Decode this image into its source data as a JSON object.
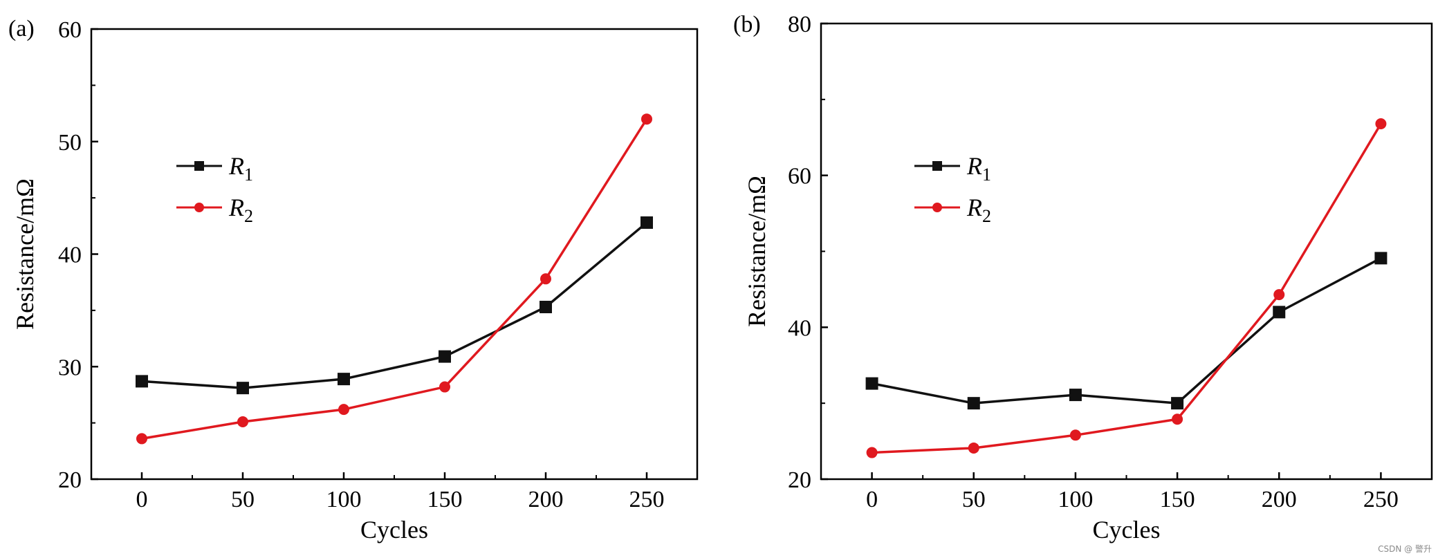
{
  "chart_data": [
    {
      "type": "line",
      "panel_label": "(a)",
      "xlabel": "Cycles",
      "ylabel": "Resistance/mΩ",
      "xlim": [
        -25,
        275
      ],
      "ylim": [
        20,
        60
      ],
      "x_ticks": [
        "0",
        "50",
        "100",
        "150",
        "200",
        "250"
      ],
      "y_ticks": [
        "20",
        "30",
        "40",
        "50",
        "60"
      ],
      "x": [
        0,
        50,
        100,
        150,
        200,
        250
      ],
      "legend_position": "upper-left",
      "series": [
        {
          "name": "R",
          "subscript": "1",
          "color": "#111111",
          "marker": "square",
          "values": [
            28.7,
            28.1,
            28.9,
            30.9,
            35.3,
            42.8
          ]
        },
        {
          "name": "R",
          "subscript": "2",
          "color": "#e0191f",
          "marker": "circle",
          "values": [
            23.6,
            25.1,
            26.2,
            28.2,
            37.8,
            52.0
          ]
        }
      ]
    },
    {
      "type": "line",
      "panel_label": "(b)",
      "xlabel": "Cycles",
      "ylabel": "Resistance/mΩ",
      "xlim": [
        -25,
        275
      ],
      "ylim": [
        20,
        80
      ],
      "x_ticks": [
        "0",
        "50",
        "100",
        "150",
        "200",
        "250"
      ],
      "y_ticks": [
        "20",
        "40",
        "60",
        "80"
      ],
      "x": [
        0,
        50,
        100,
        150,
        200,
        250
      ],
      "legend_position": "upper-left",
      "series": [
        {
          "name": "R",
          "subscript": "1",
          "color": "#111111",
          "marker": "square",
          "values": [
            32.6,
            30.0,
            31.1,
            30.0,
            42.0,
            49.1
          ]
        },
        {
          "name": "R",
          "subscript": "2",
          "color": "#e0191f",
          "marker": "circle",
          "values": [
            23.5,
            24.1,
            25.8,
            27.9,
            44.3,
            66.8
          ]
        }
      ]
    }
  ],
  "watermark": "CSDN @ 警升"
}
